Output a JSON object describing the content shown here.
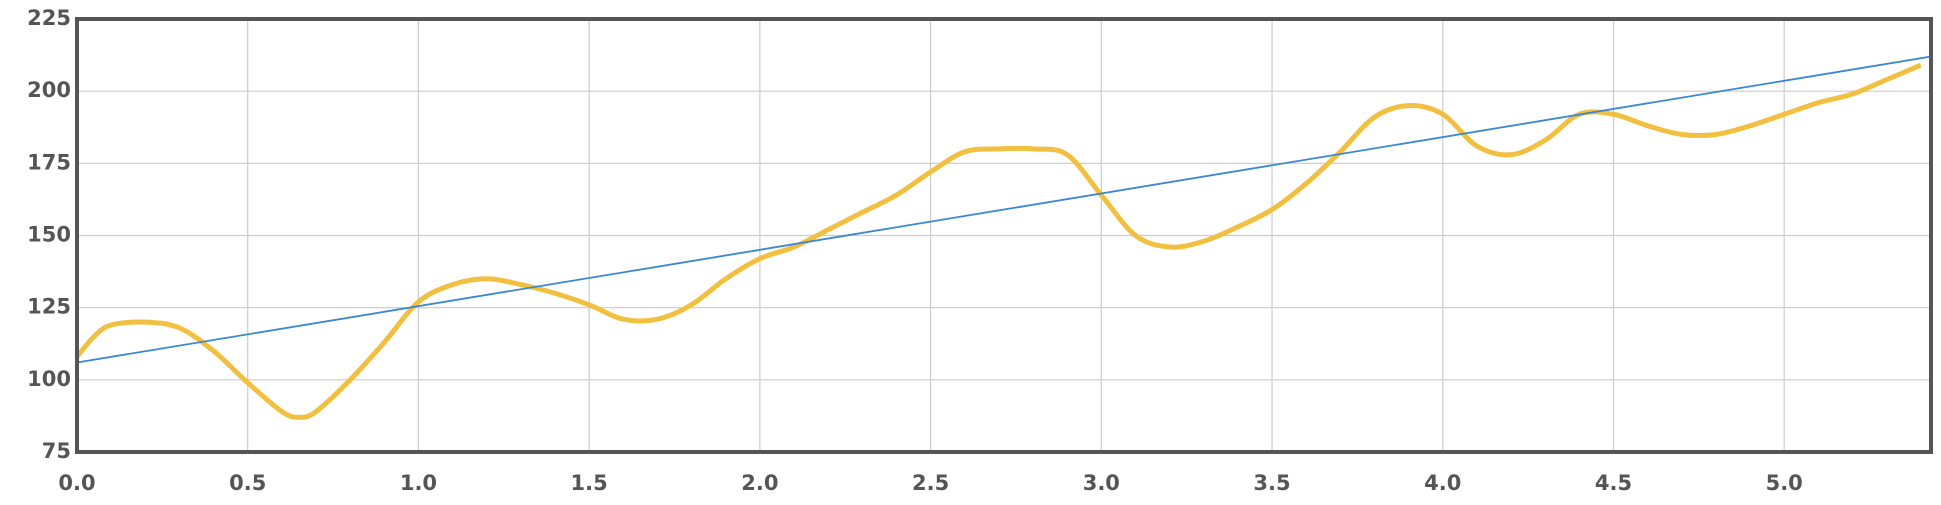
{
  "chart_data": {
    "type": "line",
    "xlim": [
      0,
      5.43
    ],
    "ylim": [
      75,
      225
    ],
    "xticks": [
      {
        "value": 0,
        "label": "0.0"
      },
      {
        "value": 0.5,
        "label": "0.5"
      },
      {
        "value": 1,
        "label": "1.0"
      },
      {
        "value": 1.5,
        "label": "1.5"
      },
      {
        "value": 2,
        "label": "2.0"
      },
      {
        "value": 2.5,
        "label": "2.5"
      },
      {
        "value": 3,
        "label": "3.0"
      },
      {
        "value": 3.5,
        "label": "3.5"
      },
      {
        "value": 4,
        "label": "4.0"
      },
      {
        "value": 4.5,
        "label": "4.5"
      },
      {
        "value": 5,
        "label": "5.0"
      }
    ],
    "yticks": [
      75,
      100,
      125,
      150,
      175,
      200,
      225
    ],
    "grid": true,
    "series": [
      {
        "color": "#f2c040",
        "x": [
          0,
          0.05,
          0.1,
          0.2,
          0.3,
          0.4,
          0.5,
          0.6,
          0.65,
          0.7,
          0.8,
          0.9,
          1.0,
          1.1,
          1.2,
          1.3,
          1.4,
          1.5,
          1.6,
          1.7,
          1.8,
          1.9,
          2.0,
          2.1,
          2.2,
          2.3,
          2.4,
          2.5,
          2.6,
          2.7,
          2.8,
          2.9,
          3.0,
          3.1,
          3.2,
          3.3,
          3.4,
          3.5,
          3.6,
          3.7,
          3.8,
          3.9,
          4.0,
          4.1,
          4.2,
          4.3,
          4.4,
          4.5,
          4.6,
          4.7,
          4.8,
          4.9,
          5.0,
          5.1,
          5.2,
          5.3,
          5.4
        ],
        "values": [
          108,
          115,
          119,
          120,
          118,
          110,
          99,
          89,
          87,
          89,
          100,
          113,
          127,
          133,
          135,
          133,
          130,
          126,
          121,
          121,
          126,
          135,
          142,
          146,
          152,
          158,
          164,
          172,
          179,
          180,
          180,
          178,
          164,
          150,
          146,
          148,
          153,
          159,
          168,
          179,
          191,
          195,
          192,
          181,
          178,
          183,
          192,
          192,
          188,
          185,
          185,
          188,
          192,
          196,
          199,
          204,
          209
        ]
      },
      {
        "color": "#3a87d4",
        "x": [
          0,
          5.43
        ],
        "values": [
          106,
          212
        ]
      }
    ]
  }
}
